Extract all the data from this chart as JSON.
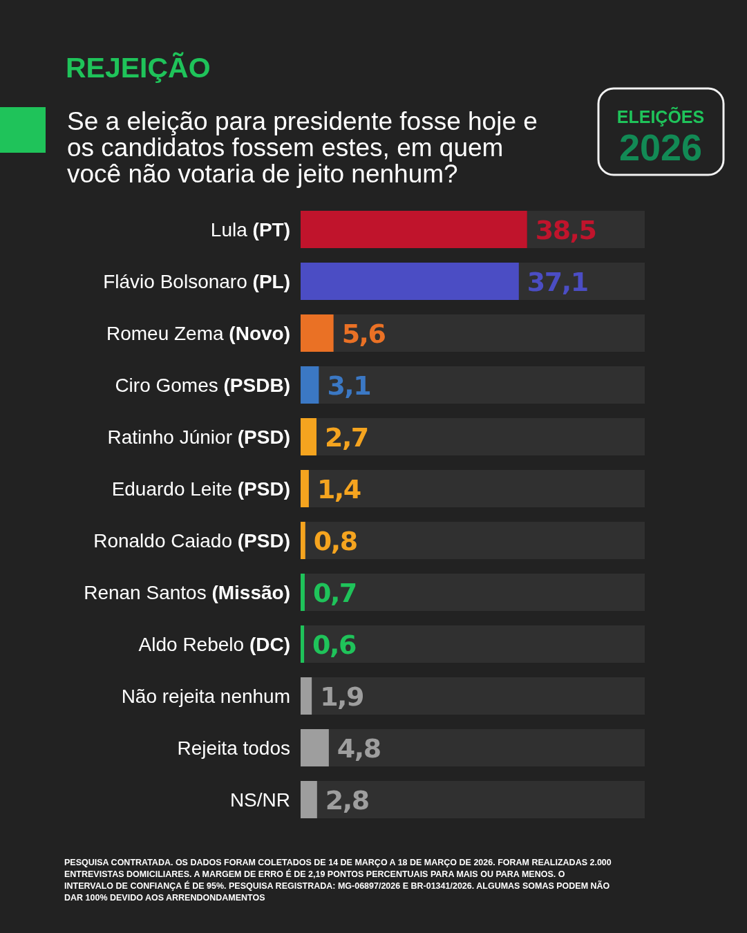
{
  "chart_data": {
    "type": "bar",
    "orientation": "horizontal",
    "title": "REJEIÇÃO",
    "subtitle": "Se a eleição para presidente fosse hoje e os candidatos fossem estes, em quem você não votaria de jeito nenhum?",
    "categories": [
      "Lula (PT)",
      "Flávio Bolsonaro (PL)",
      "Romeu Zema (Novo)",
      "Ciro Gomes (PSDB)",
      "Ratinho Júnior (PSD)",
      "Eduardo Leite (PSD)",
      "Ronaldo Caiado (PSD)",
      "Renan Santos (Missão)",
      "Aldo Rebelo (DC)",
      "Não rejeita nenhum",
      "Rejeita todos",
      "NS/NR"
    ],
    "values": [
      38.5,
      37.1,
      5.6,
      3.1,
      2.7,
      1.4,
      0.8,
      0.7,
      0.6,
      1.9,
      4.8,
      2.8
    ],
    "value_labels": [
      "38,5",
      "37,1",
      "5,6",
      "3,1",
      "2,7",
      "1,4",
      "0,8",
      "0,7",
      "0,6",
      "1,9",
      "4,8",
      "2,8"
    ],
    "colors": [
      "#c0142c",
      "#4b4dc4",
      "#ea7125",
      "#3b78c4",
      "#f5a41f",
      "#f5a41f",
      "#f5a41f",
      "#1fc35a",
      "#1fc35a",
      "#9e9e9e",
      "#9e9e9e",
      "#9e9e9e"
    ],
    "xlim": [
      0,
      58.5
    ],
    "tick_labels": "y",
    "annotations": [
      "ELEIÇÕES",
      "2026",
      "PESQUISA CONTRATADA. OS DADOS FORAM COLETADOS DE 14 DE MARÇO A 18 DE MARÇO DE 2026. FORAM REALIZADAS 2.000 ENTREVISTAS DOMICILIARES. A MARGEM DE ERRO É DE 2,19 PONTOS PERCENTUAIS PARA MAIS OU PARA MENOS. O INTERVALO DE CONFIANÇA É DE 95%. PESQUISA REGISTRADA: MG-06897/2026 E BR-01341/2026. ALGUMAS SOMAS PODEM NÃO DAR 100% DEVIDO AOS ARRENDONDAMENTOS"
    ]
  }
}
